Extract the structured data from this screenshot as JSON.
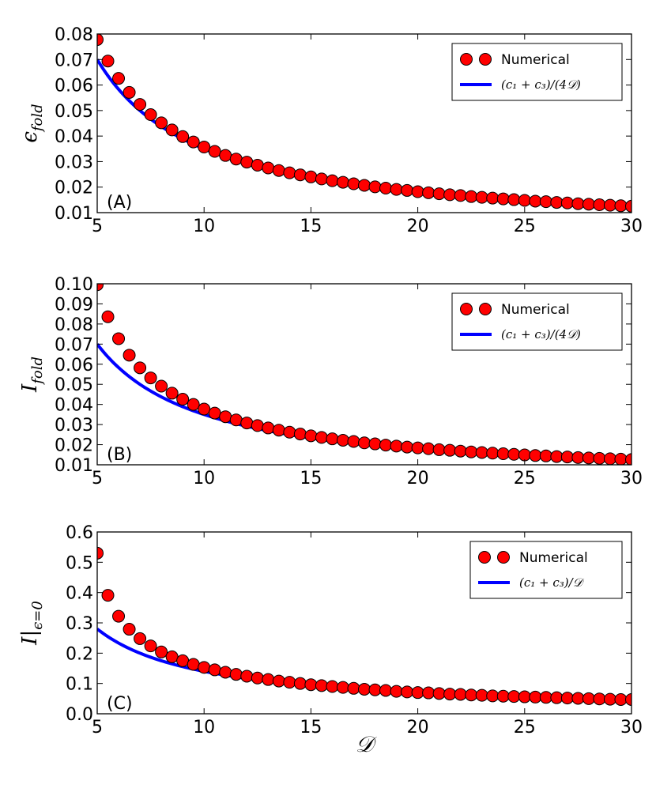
{
  "chart_data": [
    {
      "type": "line",
      "panel_label": "(A)",
      "ylabel": "ϵ",
      "ylabel_sub": "fold",
      "xlabel": "",
      "xlim": [
        5,
        30
      ],
      "ylim": [
        0.01,
        0.08
      ],
      "xticks": [
        "5",
        "10",
        "15",
        "20",
        "25",
        "30"
      ],
      "yticks": [
        "0.01",
        "0.02",
        "0.03",
        "0.04",
        "0.05",
        "0.06",
        "0.07",
        "0.08"
      ],
      "legend_position": "top-right",
      "series": [
        {
          "name": "Numerical",
          "kind": "scatter",
          "color": "#ff0000",
          "x": [
            5.0,
            5.5,
            6.0,
            6.5,
            7.0,
            7.5,
            8.0,
            8.5,
            9.0,
            9.5,
            10.0,
            10.5,
            11.0,
            11.5,
            12.0,
            12.5,
            13.0,
            13.5,
            14.0,
            14.5,
            15.0,
            15.5,
            16.0,
            16.5,
            17.0,
            17.5,
            18.0,
            18.5,
            19.0,
            19.5,
            20.0,
            20.5,
            21.0,
            21.5,
            22.0,
            22.5,
            23.0,
            23.5,
            24.0,
            24.5,
            25.0,
            25.5,
            26.0,
            26.5,
            27.0,
            27.5,
            28.0,
            28.5,
            29.0,
            29.5,
            30.0
          ],
          "y": [
            0.0778,
            0.0694,
            0.0626,
            0.0571,
            0.0524,
            0.0484,
            0.0452,
            0.0424,
            0.0398,
            0.0377,
            0.0357,
            0.034,
            0.0324,
            0.031,
            0.0298,
            0.0286,
            0.0275,
            0.0265,
            0.0256,
            0.0248,
            0.024,
            0.0232,
            0.0225,
            0.0219,
            0.0213,
            0.0207,
            0.0201,
            0.0196,
            0.0191,
            0.0187,
            0.0182,
            0.0178,
            0.0174,
            0.017,
            0.0167,
            0.0163,
            0.016,
            0.0157,
            0.0154,
            0.0151,
            0.0148,
            0.0145,
            0.0143,
            0.014,
            0.0138,
            0.0135,
            0.0133,
            0.0131,
            0.0129,
            0.0127,
            0.0125
          ]
        },
        {
          "name": "(c₁ + c₃)/(4𝒟)",
          "kind": "line",
          "color": "#0000ff",
          "coefficient": 0.35
        }
      ]
    },
    {
      "type": "line",
      "panel_label": "(B)",
      "ylabel": "I",
      "ylabel_sub": "fold",
      "xlabel": "",
      "xlim": [
        5,
        30
      ],
      "ylim": [
        0.01,
        0.1
      ],
      "xticks": [
        "5",
        "10",
        "15",
        "20",
        "25",
        "30"
      ],
      "yticks": [
        "0.01",
        "0.02",
        "0.03",
        "0.04",
        "0.05",
        "0.06",
        "0.07",
        "0.08",
        "0.09",
        "0.10"
      ],
      "legend_position": "top-right",
      "series": [
        {
          "name": "Numerical",
          "kind": "scatter",
          "color": "#ff0000",
          "x": [
            5.0,
            5.5,
            6.0,
            6.5,
            7.0,
            7.5,
            8.0,
            8.5,
            9.0,
            9.5,
            10.0,
            10.5,
            11.0,
            11.5,
            12.0,
            12.5,
            13.0,
            13.5,
            14.0,
            14.5,
            15.0,
            15.5,
            16.0,
            16.5,
            17.0,
            17.5,
            18.0,
            18.5,
            19.0,
            19.5,
            20.0,
            20.5,
            21.0,
            21.5,
            22.0,
            22.5,
            23.0,
            23.5,
            24.0,
            24.5,
            25.0,
            25.5,
            26.0,
            26.5,
            27.0,
            27.5,
            28.0,
            28.5,
            29.0,
            29.5,
            30.0
          ],
          "y": [
            0.0995,
            0.0836,
            0.0727,
            0.0645,
            0.0582,
            0.0532,
            0.0491,
            0.0456,
            0.0426,
            0.04,
            0.0377,
            0.0357,
            0.0339,
            0.0323,
            0.0308,
            0.0295,
            0.0283,
            0.0272,
            0.0262,
            0.0253,
            0.0244,
            0.0236,
            0.0229,
            0.0222,
            0.0216,
            0.0209,
            0.0204,
            0.0198,
            0.0193,
            0.0188,
            0.0184,
            0.018,
            0.0175,
            0.0172,
            0.0168,
            0.0164,
            0.0161,
            0.0158,
            0.0155,
            0.0152,
            0.0149,
            0.0146,
            0.0144,
            0.0141,
            0.0139,
            0.0136,
            0.0134,
            0.0132,
            0.013,
            0.0128,
            0.0126
          ]
        },
        {
          "name": "(c₁ + c₃)/(4𝒟)",
          "kind": "line",
          "color": "#0000ff",
          "coefficient": 0.35
        }
      ]
    },
    {
      "type": "line",
      "panel_label": "(C)",
      "ylabel": "I|",
      "ylabel_sub": "ϵ=0",
      "xlabel": "𝒟",
      "xlim": [
        5,
        30
      ],
      "ylim": [
        0.0,
        0.6
      ],
      "xticks": [
        "5",
        "10",
        "15",
        "20",
        "25",
        "30"
      ],
      "yticks": [
        "0.0",
        "0.1",
        "0.2",
        "0.3",
        "0.4",
        "0.5",
        "0.6"
      ],
      "legend_position": "top-right",
      "series": [
        {
          "name": "Numerical",
          "kind": "scatter",
          "color": "#ff0000",
          "x": [
            5.0,
            5.5,
            6.0,
            6.5,
            7.0,
            7.5,
            8.0,
            8.5,
            9.0,
            9.5,
            10.0,
            10.5,
            11.0,
            11.5,
            12.0,
            12.5,
            13.0,
            13.5,
            14.0,
            14.5,
            15.0,
            15.5,
            16.0,
            16.5,
            17.0,
            17.5,
            18.0,
            18.5,
            19.0,
            19.5,
            20.0,
            20.5,
            21.0,
            21.5,
            22.0,
            22.5,
            23.0,
            23.5,
            24.0,
            24.5,
            25.0,
            25.5,
            26.0,
            26.5,
            27.0,
            27.5,
            28.0,
            28.5,
            29.0,
            29.5,
            30.0
          ],
          "y": [
            0.53,
            0.391,
            0.322,
            0.279,
            0.248,
            0.224,
            0.204,
            0.188,
            0.175,
            0.163,
            0.153,
            0.145,
            0.137,
            0.13,
            0.124,
            0.118,
            0.113,
            0.108,
            0.104,
            0.1,
            0.096,
            0.093,
            0.09,
            0.087,
            0.084,
            0.081,
            0.079,
            0.077,
            0.074,
            0.072,
            0.07,
            0.069,
            0.067,
            0.065,
            0.064,
            0.062,
            0.061,
            0.059,
            0.058,
            0.057,
            0.056,
            0.055,
            0.054,
            0.053,
            0.052,
            0.051,
            0.05,
            0.049,
            0.048,
            0.047,
            0.047
          ]
        },
        {
          "name": "(c₁ + c₃)/𝒟",
          "kind": "line",
          "color": "#0000ff",
          "coefficient": 1.4
        }
      ]
    }
  ]
}
